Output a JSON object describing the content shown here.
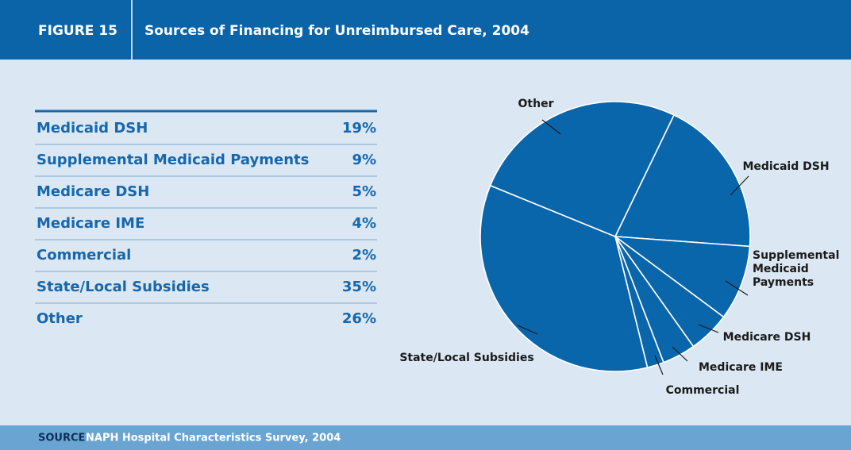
{
  "figure_label": "FIGURE 15",
  "source_label": "SOURCE",
  "source": "NAPH Hospital Characteristics Survey, 2004",
  "chart_data": {
    "type": "pie",
    "title": "Sources of Financing for Unreimbursed Care, 2004",
    "categories": [
      "Medicaid DSH",
      "Supplemental Medicaid Payments",
      "Medicare DSH",
      "Medicare IME",
      "Commercial",
      "State/Local Subsidies",
      "Other"
    ],
    "values": [
      19,
      9,
      5,
      4,
      2,
      35,
      26
    ],
    "value_labels": [
      "19%",
      "9%",
      "5%",
      "4%",
      "2%",
      "35%",
      "26%"
    ],
    "color": "#0a66ab"
  }
}
